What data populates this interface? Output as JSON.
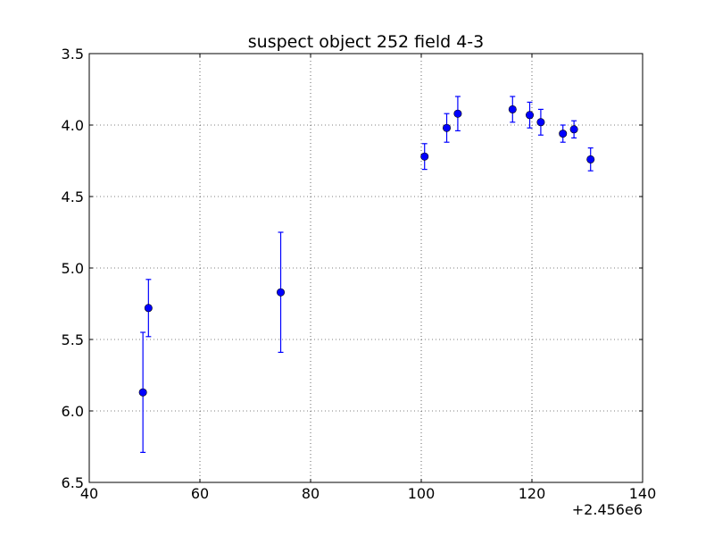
{
  "chart_data": {
    "type": "scatter",
    "title": "suspect object 252 field 4-3",
    "xlabel": "",
    "ylabel": "",
    "x_offset_label": "+2.456e6",
    "xlim": [
      40,
      140
    ],
    "ylim": [
      6.5,
      3.5
    ],
    "y_inverted": true,
    "grid": true,
    "x_ticks": [
      "40",
      "60",
      "80",
      "100",
      "120",
      "140"
    ],
    "y_ticks": [
      "3.5",
      "4.0",
      "4.5",
      "5.0",
      "5.5",
      "6.0",
      "6.5"
    ],
    "marker_color": "#0000ff",
    "errorbar_color": "#0000ff",
    "series": [
      {
        "points": [
          {
            "x": 49.7,
            "y": 5.87,
            "err": 0.42
          },
          {
            "x": 50.7,
            "y": 5.28,
            "err": 0.2
          },
          {
            "x": 74.6,
            "y": 5.17,
            "err": 0.42
          },
          {
            "x": 100.6,
            "y": 4.22,
            "err": 0.09
          },
          {
            "x": 104.6,
            "y": 4.02,
            "err": 0.1
          },
          {
            "x": 106.6,
            "y": 3.92,
            "err": 0.12
          },
          {
            "x": 116.5,
            "y": 3.89,
            "err": 0.09
          },
          {
            "x": 119.6,
            "y": 3.93,
            "err": 0.09
          },
          {
            "x": 121.6,
            "y": 3.98,
            "err": 0.09
          },
          {
            "x": 125.6,
            "y": 4.06,
            "err": 0.06
          },
          {
            "x": 127.6,
            "y": 4.03,
            "err": 0.06
          },
          {
            "x": 130.6,
            "y": 4.24,
            "err": 0.08
          }
        ]
      }
    ]
  }
}
